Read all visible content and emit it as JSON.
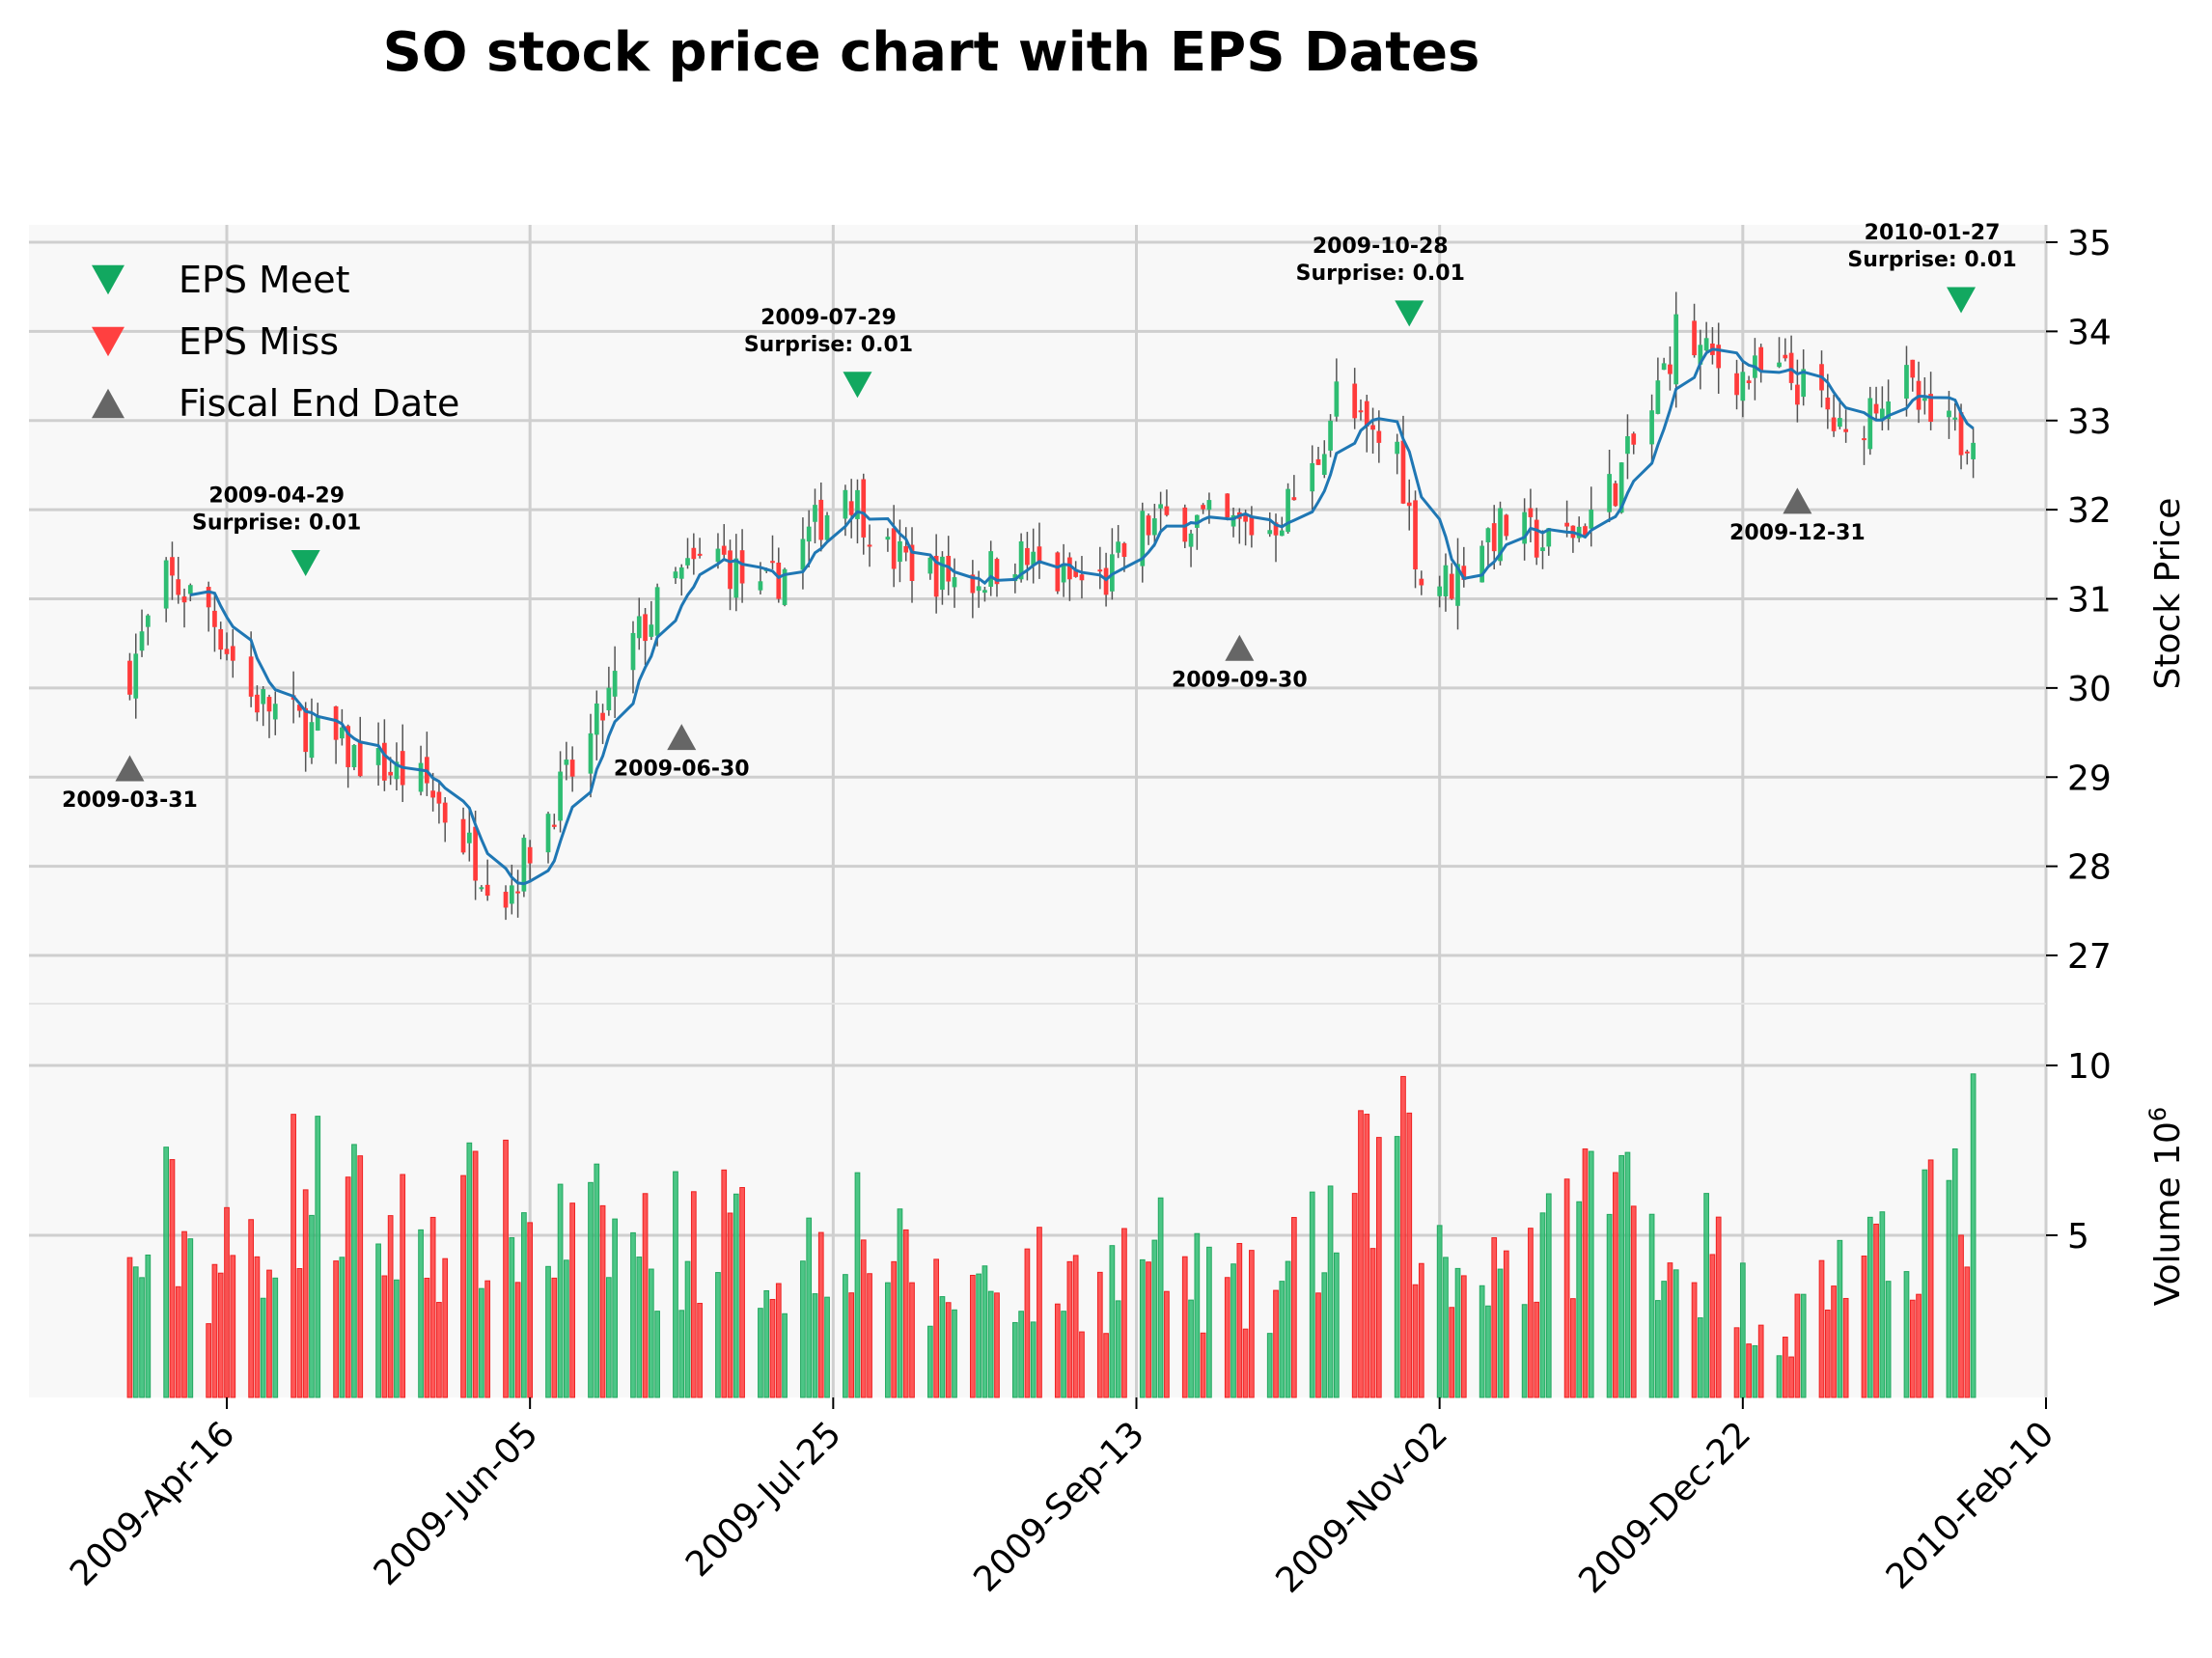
{
  "chart_data": {
    "type": "candlestick",
    "title": "SO stock price chart with EPS Dates",
    "price_axis": {
      "label": "Stock Price",
      "ylim": [
        26.4,
        35.2
      ],
      "ticks": [
        27,
        28,
        29,
        30,
        31,
        32,
        33,
        34,
        35
      ]
    },
    "volume_axis": {
      "label": "Volume",
      "scale_label": "10",
      "scale_exp": "6",
      "ylim": [
        0.5,
        10.7
      ],
      "ticks": [
        5,
        10
      ]
    },
    "x_axis": {
      "range": [
        "2009-03-10",
        "2010-02-10"
      ],
      "ticks": [
        "2009-04-16",
        "2009-06-05",
        "2009-07-25",
        "2009-09-13",
        "2009-11-02",
        "2009-12-22",
        "2010-02-10"
      ],
      "tick_labels": [
        "2009-Apr-16",
        "2009-Jun-05",
        "2009-Jul-25",
        "2009-Sep-13",
        "2009-Nov-02",
        "2009-Dec-22",
        "2010-Feb-10"
      ]
    },
    "grid": true,
    "legend": {
      "placement": "top-left",
      "entries": [
        {
          "label": "EPS Meet",
          "marker": "triangle-down",
          "color": "#12a860"
        },
        {
          "label": "EPS Miss",
          "marker": "triangle-down",
          "color": "#ff4040"
        },
        {
          "label": "Fiscal End Date",
          "marker": "triangle-up",
          "color": "#666666"
        }
      ]
    },
    "colors": {
      "up": "#2ebd72",
      "down": "#ff3b3b",
      "ma": "#1f77b4",
      "meet": "#12a860",
      "fiscal": "#666666"
    },
    "price_keypoints": [
      [
        "2009-03-31",
        30.2
      ],
      [
        "2009-04-06",
        31.2
      ],
      [
        "2009-04-13",
        30.9
      ],
      [
        "2009-04-20",
        29.9
      ],
      [
        "2009-04-28",
        29.6
      ],
      [
        "2009-05-05",
        29.3
      ],
      [
        "2009-05-12",
        29.1
      ],
      [
        "2009-05-19",
        28.9
      ],
      [
        "2009-05-27",
        28.1
      ],
      [
        "2009-06-01",
        27.7
      ],
      [
        "2009-06-08",
        28.6
      ],
      [
        "2009-06-15",
        29.4
      ],
      [
        "2009-06-22",
        30.5
      ],
      [
        "2009-06-29",
        31.2
      ],
      [
        "2009-07-06",
        31.5
      ],
      [
        "2009-07-13",
        31.0
      ],
      [
        "2009-07-20",
        31.6
      ],
      [
        "2009-07-27",
        32.3
      ],
      [
        "2009-08-03",
        31.5
      ],
      [
        "2009-08-10",
        31.3
      ],
      [
        "2009-08-17",
        31.2
      ],
      [
        "2009-08-24",
        31.5
      ],
      [
        "2009-08-31",
        31.2
      ],
      [
        "2009-09-08",
        31.2
      ],
      [
        "2009-09-14",
        31.8
      ],
      [
        "2009-09-21",
        31.9
      ],
      [
        "2009-09-28",
        31.8
      ],
      [
        "2009-10-05",
        31.8
      ],
      [
        "2009-10-12",
        32.4
      ],
      [
        "2009-10-16",
        33.3
      ],
      [
        "2009-10-21",
        32.8
      ],
      [
        "2009-10-26",
        32.7
      ],
      [
        "2009-10-30",
        31.2
      ],
      [
        "2009-11-04",
        31.2
      ],
      [
        "2009-11-09",
        31.7
      ],
      [
        "2009-11-13",
        31.8
      ],
      [
        "2009-11-20",
        31.6
      ],
      [
        "2009-11-25",
        31.8
      ],
      [
        "2009-12-01",
        32.3
      ],
      [
        "2009-12-07",
        33.1
      ],
      [
        "2009-12-11",
        34.0
      ],
      [
        "2009-12-16",
        33.7
      ],
      [
        "2009-12-22",
        33.5
      ],
      [
        "2009-12-29",
        33.5
      ],
      [
        "2010-01-04",
        33.2
      ],
      [
        "2010-01-08",
        32.7
      ],
      [
        "2010-01-13",
        33.3
      ],
      [
        "2010-01-18",
        33.4
      ],
      [
        "2010-01-21",
        33.0
      ],
      [
        "2010-01-27",
        32.8
      ],
      [
        "2010-01-29",
        33.0
      ]
    ],
    "volume_keypoints": [
      [
        "2009-03-31",
        3.6
      ],
      [
        "2009-04-06",
        5.5
      ],
      [
        "2009-04-13",
        4.0
      ],
      [
        "2009-04-20",
        4.6
      ],
      [
        "2009-04-28",
        6.5
      ],
      [
        "2009-05-05",
        5.8
      ],
      [
        "2009-05-12",
        5.0
      ],
      [
        "2009-05-19",
        5.2
      ],
      [
        "2009-05-27",
        5.5
      ],
      [
        "2009-06-01",
        5.4
      ],
      [
        "2009-06-08",
        4.9
      ],
      [
        "2009-06-15",
        5.0
      ],
      [
        "2009-06-22",
        4.8
      ],
      [
        "2009-06-29",
        4.9
      ],
      [
        "2009-07-06",
        5.2
      ],
      [
        "2009-07-13",
        4.3
      ],
      [
        "2009-07-20",
        4.2
      ],
      [
        "2009-07-27",
        5.8
      ],
      [
        "2009-08-03",
        4.4
      ],
      [
        "2009-08-10",
        3.2
      ],
      [
        "2009-08-17",
        3.6
      ],
      [
        "2009-08-24",
        3.8
      ],
      [
        "2009-08-31",
        3.6
      ],
      [
        "2009-09-08",
        3.7
      ],
      [
        "2009-09-14",
        4.6
      ],
      [
        "2009-09-21",
        3.8
      ],
      [
        "2009-09-28",
        3.4
      ],
      [
        "2009-10-05",
        3.0
      ],
      [
        "2009-10-12",
        4.8
      ],
      [
        "2009-10-16",
        5.6
      ],
      [
        "2009-10-21",
        6.2
      ],
      [
        "2009-10-26",
        7.5
      ],
      [
        "2009-10-30",
        5.0
      ],
      [
        "2009-11-04",
        3.6
      ],
      [
        "2009-11-09",
        4.7
      ],
      [
        "2009-11-13",
        4.5
      ],
      [
        "2009-11-20",
        4.4
      ],
      [
        "2009-11-25",
        6.0
      ],
      [
        "2009-12-01",
        6.4
      ],
      [
        "2009-12-07",
        5.6
      ],
      [
        "2009-12-11",
        4.2
      ],
      [
        "2009-12-16",
        4.6
      ],
      [
        "2009-12-22",
        3.2
      ],
      [
        "2009-12-29",
        2.0
      ],
      [
        "2010-01-04",
        3.6
      ],
      [
        "2010-01-08",
        4.4
      ],
      [
        "2010-01-13",
        3.8
      ],
      [
        "2010-01-18",
        4.6
      ],
      [
        "2010-01-21",
        6.4
      ],
      [
        "2010-01-27",
        5.2
      ],
      [
        "2010-01-29",
        7.5
      ]
    ],
    "eps_events": [
      {
        "date": "2009-04-29",
        "type": "meet",
        "label": "2009-04-29",
        "surprise": "Surprise: 0.01",
        "y": 31.4
      },
      {
        "date": "2009-07-29",
        "type": "meet",
        "label": "2009-07-29",
        "surprise": "Surprise: 0.01",
        "y": 33.4
      },
      {
        "date": "2009-10-28",
        "type": "meet",
        "label": "2009-10-28",
        "surprise": "Surprise: 0.01",
        "y": 34.2
      },
      {
        "date": "2010-01-27",
        "type": "meet",
        "label": "2010-01-27",
        "surprise": "Surprise: 0.01",
        "y": 34.35
      }
    ],
    "fiscal_end_dates": [
      {
        "date": "2009-03-31",
        "label": "2009-03-31",
        "y": 29.1
      },
      {
        "date": "2009-06-30",
        "label": "2009-06-30",
        "y": 29.45
      },
      {
        "date": "2009-09-30",
        "label": "2009-09-30",
        "y": 30.45
      },
      {
        "date": "2009-12-31",
        "label": "2009-12-31",
        "y": 32.1
      }
    ]
  }
}
